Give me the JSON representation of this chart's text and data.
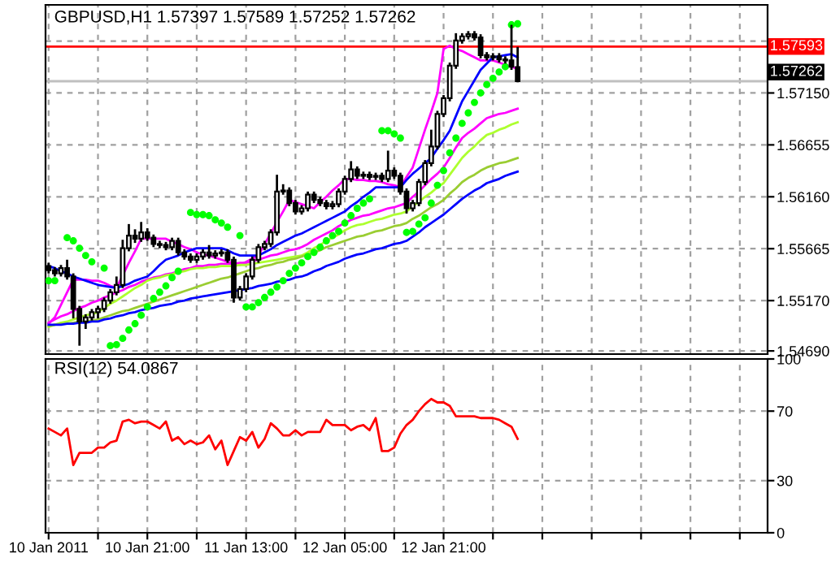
{
  "chart_data": [
    {
      "type": "candlestick",
      "title": "GBPUSD,H1 1.57397 1.57589 1.57252 1.57262",
      "categories": [
        null,
        null,
        null,
        null,
        null,
        null,
        null,
        null,
        null,
        null,
        null,
        null,
        null,
        null,
        null,
        null,
        null,
        null,
        null,
        null,
        null,
        null,
        null,
        null,
        null,
        null,
        null,
        null,
        null,
        null,
        null,
        null,
        null,
        null,
        null,
        null,
        null,
        null,
        null,
        null,
        null,
        null,
        null,
        null,
        null,
        null,
        null,
        null,
        null,
        null,
        null,
        null,
        null,
        null,
        null,
        null,
        null,
        null,
        null,
        null,
        null,
        null,
        null,
        null,
        null,
        null,
        null,
        null,
        null,
        null,
        null,
        null,
        null,
        null,
        null,
        null,
        null,
        null,
        null,
        null,
        null,
        null,
        null,
        null,
        null,
        null,
        null,
        null,
        null,
        null,
        null,
        null,
        null,
        null,
        null,
        null,
        null,
        null,
        null,
        null,
        null,
        null,
        null,
        null,
        null,
        null,
        null,
        null,
        null,
        null,
        null,
        null,
        null,
        null,
        null,
        null,
        null
      ],
      "ohlc": [
        [
          1.555,
          1.5553,
          1.5543,
          1.5546
        ],
        [
          1.5546,
          1.5549,
          1.554,
          1.5543
        ],
        [
          1.5543,
          1.5551,
          1.554,
          1.5548
        ],
        [
          1.5548,
          1.5556,
          1.5537,
          1.554
        ],
        [
          1.554,
          1.5543,
          1.55,
          1.5509
        ],
        [
          1.5509,
          1.5512,
          1.5474,
          1.5497
        ],
        [
          1.5497,
          1.5504,
          1.549,
          1.5501
        ],
        [
          1.5501,
          1.5509,
          1.5498,
          1.5506
        ],
        [
          1.5506,
          1.5512,
          1.55,
          1.5509
        ],
        [
          1.5509,
          1.552,
          1.5506,
          1.5517
        ],
        [
          1.5517,
          1.5528,
          1.5514,
          1.5525
        ],
        [
          1.5525,
          1.554,
          1.5522,
          1.5532
        ],
        [
          1.5532,
          1.5575,
          1.5529,
          1.5567
        ],
        [
          1.5567,
          1.559,
          1.5564,
          1.5579
        ],
        [
          1.5579,
          1.5585,
          1.5572,
          1.5576
        ],
        [
          1.5576,
          1.5592,
          1.5573,
          1.5582
        ],
        [
          1.5582,
          1.5586,
          1.5574,
          1.5577
        ],
        [
          1.5577,
          1.558,
          1.5568,
          1.5571
        ],
        [
          1.5571,
          1.5574,
          1.5567,
          1.557
        ],
        [
          1.557,
          1.5573,
          1.5565,
          1.5568
        ],
        [
          1.5568,
          1.5577,
          1.5565,
          1.5574
        ],
        [
          1.5574,
          1.5577,
          1.556,
          1.5563
        ],
        [
          1.5563,
          1.5566,
          1.5556,
          1.5559
        ],
        [
          1.5559,
          1.5562,
          1.5553,
          1.5556
        ],
        [
          1.5556,
          1.5562,
          1.5553,
          1.5559
        ],
        [
          1.5559,
          1.5566,
          1.5556,
          1.5563
        ],
        [
          1.5563,
          1.557,
          1.5557,
          1.556
        ],
        [
          1.556,
          1.5565,
          1.5557,
          1.5562
        ],
        [
          1.5562,
          1.5566,
          1.5559,
          1.5563
        ],
        [
          1.5563,
          1.5566,
          1.5553,
          1.5556
        ],
        [
          1.5556,
          1.5559,
          1.5515,
          1.552
        ],
        [
          1.552,
          1.5531,
          1.5517,
          1.5528
        ],
        [
          1.5528,
          1.5543,
          1.5525,
          1.554
        ],
        [
          1.554,
          1.5559,
          1.5537,
          1.5556
        ],
        [
          1.5556,
          1.5571,
          1.5553,
          1.5568
        ],
        [
          1.5568,
          1.5574,
          1.5565,
          1.5571
        ],
        [
          1.5571,
          1.5585,
          1.5568,
          1.5582
        ],
        [
          1.5582,
          1.5637,
          1.5579,
          1.5621
        ],
        [
          1.5621,
          1.5628,
          1.5618,
          1.5622
        ],
        [
          1.5622,
          1.5625,
          1.5607,
          1.561
        ],
        [
          1.561,
          1.5613,
          1.5599,
          1.5602
        ],
        [
          1.5602,
          1.5608,
          1.5599,
          1.5605
        ],
        [
          1.5605,
          1.5621,
          1.5602,
          1.5618
        ],
        [
          1.5618,
          1.5621,
          1.561,
          1.5613
        ],
        [
          1.5613,
          1.5616,
          1.5607,
          1.561
        ],
        [
          1.561,
          1.5613,
          1.5604,
          1.5607
        ],
        [
          1.5607,
          1.5612,
          1.5604,
          1.5609
        ],
        [
          1.5609,
          1.5624,
          1.5606,
          1.5621
        ],
        [
          1.5621,
          1.5636,
          1.5618,
          1.5633
        ],
        [
          1.5633,
          1.565,
          1.563,
          1.5642
        ],
        [
          1.5642,
          1.5645,
          1.5633,
          1.5636
        ],
        [
          1.5636,
          1.564,
          1.5633,
          1.5637
        ],
        [
          1.5637,
          1.564,
          1.5632,
          1.5635
        ],
        [
          1.5635,
          1.5639,
          1.5632,
          1.5636
        ],
        [
          1.5636,
          1.5639,
          1.563,
          1.5633
        ],
        [
          1.5633,
          1.566,
          1.563,
          1.5641
        ],
        [
          1.5641,
          1.5644,
          1.5633,
          1.5636
        ],
        [
          1.5636,
          1.5639,
          1.5618,
          1.5621
        ],
        [
          1.5621,
          1.5624,
          1.56,
          1.5605
        ],
        [
          1.5605,
          1.5613,
          1.5602,
          1.561
        ],
        [
          1.561,
          1.5633,
          1.5607,
          1.563
        ],
        [
          1.563,
          1.5651,
          1.5627,
          1.5648
        ],
        [
          1.5648,
          1.568,
          1.5645,
          1.5664
        ],
        [
          1.5664,
          1.5698,
          1.5661,
          1.5695
        ],
        [
          1.5695,
          1.5713,
          1.5692,
          1.571
        ],
        [
          1.571,
          1.5744,
          1.5707,
          1.5741
        ],
        [
          1.5741,
          1.5772,
          1.5738,
          1.5765
        ],
        [
          1.5765,
          1.5772,
          1.5762,
          1.5769
        ],
        [
          1.5769,
          1.5774,
          1.5766,
          1.5771
        ],
        [
          1.5771,
          1.5774,
          1.5765,
          1.5768
        ],
        [
          1.5768,
          1.5771,
          1.5748,
          1.5751
        ],
        [
          1.5751,
          1.5754,
          1.5746,
          1.5749
        ],
        [
          1.5749,
          1.5753,
          1.5746,
          1.575
        ],
        [
          1.575,
          1.5753,
          1.5744,
          1.5747
        ],
        [
          1.5747,
          1.575,
          1.5743,
          1.5746
        ],
        [
          1.5746,
          1.578,
          1.5737,
          1.574
        ],
        [
          1.57397,
          1.57589,
          1.57252,
          1.57262
        ],
        null,
        null,
        null,
        null,
        null,
        null,
        null,
        null,
        null,
        null,
        null,
        null,
        null,
        null,
        null,
        null,
        null,
        null,
        null,
        null,
        null,
        null,
        null,
        null,
        null,
        null,
        null,
        null,
        null,
        null,
        null,
        null,
        null,
        null,
        null,
        null,
        null,
        null,
        null,
        null
      ],
      "series": [
        {
          "type": "line",
          "color": "#ff00ff",
          "values": [
            1.5495,
            1.5501,
            1.5513,
            1.5525,
            1.5537,
            1.5537,
            1.5537,
            1.5536,
            1.5536,
            1.5534,
            1.5531,
            1.5529,
            1.5541,
            1.5553,
            1.5564,
            1.5576,
            1.5576,
            1.5576,
            1.5576,
            1.5576,
            1.5573,
            1.5571,
            1.5568,
            1.5566,
            1.5563,
            1.5561,
            1.556,
            1.5558,
            1.5556,
            1.5554,
            1.5553,
            1.5551,
            1.5554,
            1.5557,
            1.556,
            1.5571,
            1.5581,
            1.5592,
            1.5602,
            1.5613,
            1.5611,
            1.5609,
            1.5607,
            1.5605,
            1.5611,
            1.5616,
            1.5622,
            1.5627,
            1.5633,
            1.5633,
            1.5632,
            1.5632,
            1.5631,
            1.5631,
            1.563,
            1.5628,
            1.5627,
            1.5625,
            1.5635,
            1.5644,
            1.5662,
            1.568,
            1.5697,
            1.5715,
            1.5757,
            1.576,
            1.5757,
            1.5755,
            1.5752,
            1.5749,
            1.5746,
            1.5746,
            1.5746,
            1.5744,
            1.5742,
            1.574,
            1.5738,
            null,
            null,
            null,
            null,
            null,
            null,
            null,
            null,
            null,
            null,
            null,
            null,
            null,
            null,
            null,
            null,
            null,
            null,
            null,
            null,
            null,
            null,
            null,
            null,
            null,
            null,
            null,
            null,
            null,
            null,
            null,
            null,
            null,
            null,
            null,
            null,
            null,
            null,
            null,
            null
          ]
        },
        {
          "type": "line",
          "color": "#0000ff",
          "values": [
            1.555,
            1.5548,
            1.5545,
            1.5543,
            1.554,
            1.5538,
            1.5536,
            1.5534,
            1.5532,
            1.5531,
            1.553,
            1.5529,
            1.5531,
            1.5533,
            1.5536,
            1.5538,
            1.554,
            1.5545,
            1.5551,
            1.5556,
            1.5558,
            1.556,
            1.5563,
            1.5565,
            1.5567,
            1.5567,
            1.5567,
            1.5567,
            1.5567,
            1.5565,
            1.5562,
            1.556,
            1.556,
            1.556,
            1.556,
            1.5563,
            1.5566,
            1.557,
            1.5573,
            1.5576,
            1.5579,
            1.5581,
            1.5584,
            1.5587,
            1.559,
            1.5593,
            1.5596,
            1.5599,
            1.5602,
            1.5607,
            1.5611,
            1.5616,
            1.562,
            1.5625,
            1.5625,
            1.5625,
            1.5625,
            1.5625,
            1.5632,
            1.5638,
            1.5643,
            1.5648,
            1.5653,
            1.5662,
            1.567,
            1.5679,
            1.5693,
            1.5707,
            1.5717,
            1.5727,
            1.5737,
            1.5743,
            1.5749,
            1.575,
            1.5751,
            1.5752,
            1.5749,
            null,
            null,
            null,
            null,
            null,
            null,
            null,
            null,
            null,
            null,
            null,
            null,
            null,
            null,
            null,
            null,
            null,
            null,
            null,
            null,
            null,
            null,
            null,
            null,
            null,
            null,
            null,
            null,
            null,
            null,
            null,
            null,
            null,
            null,
            null,
            null,
            null,
            null,
            null,
            null
          ]
        },
        {
          "type": "line",
          "color": "#ff00ff",
          "values": [
            1.5496,
            1.5499,
            1.5502,
            1.5504,
            1.5507,
            1.551,
            1.5512,
            1.5515,
            1.5517,
            1.552,
            1.5522,
            1.5525,
            1.5527,
            1.553,
            1.5532,
            1.5535,
            1.5537,
            1.5539,
            1.554,
            1.5542,
            1.5543,
            1.5545,
            1.5547,
            1.5548,
            1.555,
            1.555,
            1.5551,
            1.5551,
            1.5552,
            1.5552,
            1.5552,
            1.5553,
            1.5553,
            1.5555,
            1.5556,
            1.5558,
            1.556,
            1.5561,
            1.5563,
            1.5565,
            1.5566,
            1.5568,
            1.5571,
            1.5575,
            1.5578,
            1.5581,
            1.5584,
            1.5588,
            1.5591,
            1.5594,
            1.5596,
            1.5598,
            1.5599,
            1.5601,
            1.5603,
            1.5605,
            1.5606,
            1.5608,
            1.561,
            1.5616,
            1.5621,
            1.5627,
            1.5633,
            1.5638,
            1.5644,
            1.5653,
            1.5663,
            1.5672,
            1.5677,
            1.5681,
            1.5686,
            1.5691,
            1.5693,
            1.5695,
            1.5696,
            1.5698,
            1.57,
            null,
            null,
            null,
            null,
            null,
            null,
            null,
            null,
            null,
            null,
            null,
            null,
            null,
            null,
            null,
            null,
            null,
            null,
            null,
            null,
            null,
            null,
            null,
            null,
            null,
            null,
            null,
            null,
            null,
            null,
            null,
            null,
            null,
            null,
            null,
            null,
            null,
            null,
            null,
            null
          ]
        },
        {
          "type": "line",
          "color": "#adff2f",
          "values": [
            1.5492,
            1.5494,
            1.5496,
            1.5497,
            1.5499,
            1.5501,
            1.5503,
            1.5504,
            1.5506,
            1.551,
            1.5514,
            1.5517,
            1.5521,
            1.5525,
            1.5529,
            1.5532,
            1.5536,
            1.5538,
            1.5539,
            1.5541,
            1.5542,
            1.5544,
            1.5545,
            1.5547,
            1.5548,
            1.5548,
            1.5549,
            1.5549,
            1.555,
            1.555,
            1.555,
            1.5551,
            1.5551,
            1.5552,
            1.5553,
            1.5554,
            1.5555,
            1.5556,
            1.5557,
            1.5558,
            1.5559,
            1.556,
            1.5563,
            1.5567,
            1.557,
            1.5574,
            1.5577,
            1.558,
            1.5584,
            1.5587,
            1.5589,
            1.559,
            1.5592,
            1.5594,
            1.5595,
            1.5597,
            1.5599,
            1.56,
            1.5602,
            1.5607,
            1.5611,
            1.5616,
            1.562,
            1.5625,
            1.5629,
            1.5637,
            1.5645,
            1.5653,
            1.5659,
            1.5664,
            1.567,
            1.5675,
            1.5677,
            1.568,
            1.5682,
            1.5685,
            1.5687,
            null,
            null,
            null,
            null,
            null,
            null,
            null,
            null,
            null,
            null,
            null,
            null,
            null,
            null,
            null,
            null,
            null,
            null,
            null,
            null,
            null,
            null,
            null,
            null,
            null,
            null,
            null,
            null,
            null,
            null,
            null,
            null,
            null,
            null,
            null,
            null,
            null,
            null,
            null,
            null
          ]
        },
        {
          "type": "line",
          "color": "#9acd32",
          "values": [
            1.5493,
            1.5494,
            1.5495,
            1.5495,
            1.5496,
            1.5497,
            1.5497,
            1.5498,
            1.5499,
            1.5501,
            1.5503,
            1.5505,
            1.5507,
            1.5508,
            1.551,
            1.5512,
            1.5514,
            1.5516,
            1.5518,
            1.552,
            1.5522,
            1.5524,
            1.5526,
            1.5528,
            1.553,
            1.5532,
            1.5534,
            1.5536,
            1.5538,
            1.5539,
            1.5541,
            1.5543,
            1.5545,
            1.5547,
            1.5548,
            1.555,
            1.5551,
            1.5553,
            1.5554,
            1.5556,
            1.5557,
            1.5559,
            1.5561,
            1.5563,
            1.5565,
            1.5568,
            1.557,
            1.5572,
            1.5574,
            1.5576,
            1.5578,
            1.5579,
            1.5581,
            1.5583,
            1.5584,
            1.5586,
            1.5588,
            1.5589,
            1.5591,
            1.5595,
            1.5598,
            1.5602,
            1.5606,
            1.5609,
            1.5613,
            1.5619,
            1.5624,
            1.563,
            1.5634,
            1.5637,
            1.5641,
            1.5644,
            1.5646,
            1.5648,
            1.5649,
            1.5651,
            1.5653,
            null,
            null,
            null,
            null,
            null,
            null,
            null,
            null,
            null,
            null,
            null,
            null,
            null,
            null,
            null,
            null,
            null,
            null,
            null,
            null,
            null,
            null,
            null,
            null,
            null,
            null,
            null,
            null,
            null,
            null,
            null,
            null,
            null,
            null,
            null,
            null,
            null,
            null,
            null,
            null
          ]
        },
        {
          "type": "line",
          "color": "#0000ff",
          "values": [
            1.5494,
            1.5494,
            1.5494,
            1.5495,
            1.5495,
            1.5496,
            1.5496,
            1.5497,
            1.5497,
            1.5499,
            1.55,
            1.5502,
            1.5503,
            1.5505,
            1.5506,
            1.5508,
            1.5509,
            1.551,
            1.5512,
            1.5513,
            1.5514,
            1.5516,
            1.5517,
            1.5519,
            1.552,
            1.5521,
            1.5522,
            1.5523,
            1.5524,
            1.5525,
            1.5526,
            1.5527,
            1.5528,
            1.5529,
            1.5531,
            1.5532,
            1.5533,
            1.5535,
            1.5536,
            1.5537,
            1.5539,
            1.554,
            1.5542,
            1.5545,
            1.5547,
            1.555,
            1.5552,
            1.5554,
            1.5557,
            1.5559,
            1.5561,
            1.5562,
            1.5564,
            1.5566,
            1.5567,
            1.5569,
            1.5571,
            1.5572,
            1.5574,
            1.5578,
            1.5582,
            1.5587,
            1.5591,
            1.5595,
            1.5599,
            1.5604,
            1.5609,
            1.5614,
            1.5618,
            1.5622,
            1.5625,
            1.5629,
            1.5631,
            1.5633,
            1.5636,
            1.5638,
            1.564,
            null,
            null,
            null,
            null,
            null,
            null,
            null,
            null,
            null,
            null,
            null,
            null,
            null,
            null,
            null,
            null,
            null,
            null,
            null,
            null,
            null,
            null,
            null,
            null,
            null,
            null,
            null,
            null,
            null,
            null,
            null,
            null,
            null,
            null,
            null,
            null,
            null,
            null,
            null,
            null
          ]
        },
        {
          "type": "scatter",
          "color": "#00ff00",
          "marker": "circle",
          "values": [
            1.5536,
            1.5536,
            null,
            1.5577,
            1.5574,
            1.5567,
            1.556,
            1.5554,
            null,
            1.5548,
            1.5474,
            1.5475,
            1.5481,
            1.5489,
            1.5495,
            1.5503,
            1.5511,
            1.5519,
            1.5525,
            1.5531,
            1.5539,
            1.5545,
            null,
            1.5601,
            1.5599,
            1.5599,
            1.5598,
            1.5594,
            1.5591,
            1.5587,
            null,
            1.5579,
            1.5511,
            1.5511,
            1.5515,
            1.552,
            1.5525,
            1.553,
            1.5536,
            1.5543,
            1.5548,
            1.5553,
            1.5559,
            1.5563,
            1.5568,
            1.5574,
            1.5579,
            1.5583,
            1.5591,
            1.5598,
            1.5605,
            1.561,
            1.5614,
            null,
            1.5679,
            1.5679,
            1.5676,
            1.5672,
            1.5582,
            1.5583,
            1.559,
            1.5596,
            1.561,
            1.5627,
            1.5641,
            1.5658,
            1.5672,
            1.5686,
            1.5696,
            1.5706,
            1.5715,
            1.5723,
            1.5729,
            1.5735,
            1.574,
            1.578,
            1.5781,
            null,
            null,
            null,
            null,
            null,
            null,
            null,
            null,
            null,
            null,
            null,
            null,
            null,
            null,
            null,
            null,
            null,
            null,
            null,
            null,
            null,
            null,
            null,
            null,
            null,
            null,
            null,
            null,
            null,
            null,
            null,
            null,
            null,
            null,
            null,
            null,
            null,
            null,
            null,
            null
          ]
        }
      ],
      "ylim": [
        1.5466,
        1.5799
      ],
      "yticks": [
        {
          "value": 1.5469,
          "label": "1.54690"
        },
        {
          "value": 1.5517,
          "label": "1.55170"
        },
        {
          "value": 1.55665,
          "label": "1.55665"
        },
        {
          "value": 1.5616,
          "label": "1.56160"
        },
        {
          "value": 1.56655,
          "label": "1.56655"
        },
        {
          "value": 1.5715,
          "label": "1.57150"
        },
        {
          "value": 1.57645,
          "label": null
        }
      ],
      "ref_lines": [
        {
          "axis": "y",
          "value": 1.57593,
          "label": "1.57593",
          "color": "#ff0000"
        },
        {
          "axis": "y",
          "value": 1.57262,
          "label": "1.57262",
          "color": "#c0c0c0"
        }
      ],
      "grid": true,
      "tick_labels": "y"
    },
    {
      "type": "line",
      "title": "RSI(12) 54.0867",
      "categories": [
        "10 Jan 2011",
        null,
        null,
        null,
        null,
        null,
        null,
        null,
        null,
        null,
        null,
        null,
        null,
        null,
        null,
        null,
        "10 Jan 21:00",
        null,
        null,
        null,
        null,
        null,
        null,
        null,
        null,
        null,
        null,
        null,
        null,
        null,
        null,
        null,
        "11 Jan 13:00",
        null,
        null,
        null,
        null,
        null,
        null,
        null,
        null,
        null,
        null,
        null,
        null,
        null,
        null,
        null,
        "12 Jan 05:00",
        null,
        null,
        null,
        null,
        null,
        null,
        null,
        null,
        null,
        null,
        null,
        null,
        null,
        null,
        null,
        "12 Jan 21:00",
        null,
        null,
        null,
        null,
        null,
        null,
        null,
        null,
        null,
        null,
        null,
        null,
        null,
        null,
        null,
        null,
        null,
        null,
        null,
        null,
        null,
        null,
        null,
        null,
        null,
        null,
        null,
        null,
        null,
        null,
        null,
        null,
        null,
        null,
        null,
        null,
        null,
        null,
        null,
        null,
        null,
        null,
        null,
        null,
        null,
        null,
        null,
        null,
        null,
        null,
        null,
        null
      ],
      "series": [
        {
          "color": "#ff0000",
          "values": [
            60,
            58,
            56,
            60,
            39,
            46,
            46,
            46,
            49,
            49,
            52,
            53,
            64,
            65,
            63,
            64,
            64,
            62,
            60,
            64,
            53,
            55,
            51,
            53,
            51,
            52,
            56,
            48,
            53,
            39,
            47,
            55,
            53,
            58,
            49,
            54,
            63,
            60,
            56,
            56,
            59,
            56,
            58,
            58,
            58,
            65,
            62,
            62,
            62,
            59,
            61,
            62,
            59,
            66,
            47,
            47,
            49,
            57,
            62,
            65,
            70,
            74,
            77,
            75,
            75,
            73,
            67,
            67,
            67,
            67,
            66,
            66,
            66,
            65,
            63,
            61,
            54,
            null,
            null,
            null,
            null,
            null,
            null,
            null,
            null,
            null,
            null,
            null,
            null,
            null,
            null,
            null,
            null,
            null,
            null,
            null,
            null,
            null,
            null,
            null,
            null,
            null,
            null,
            null,
            null,
            null,
            null,
            null,
            null,
            null,
            null,
            null,
            null,
            null,
            null,
            null,
            null
          ]
        }
      ],
      "ylim": [
        0,
        100
      ],
      "yticks": [
        0,
        30,
        70,
        100
      ],
      "grid": true
    }
  ]
}
